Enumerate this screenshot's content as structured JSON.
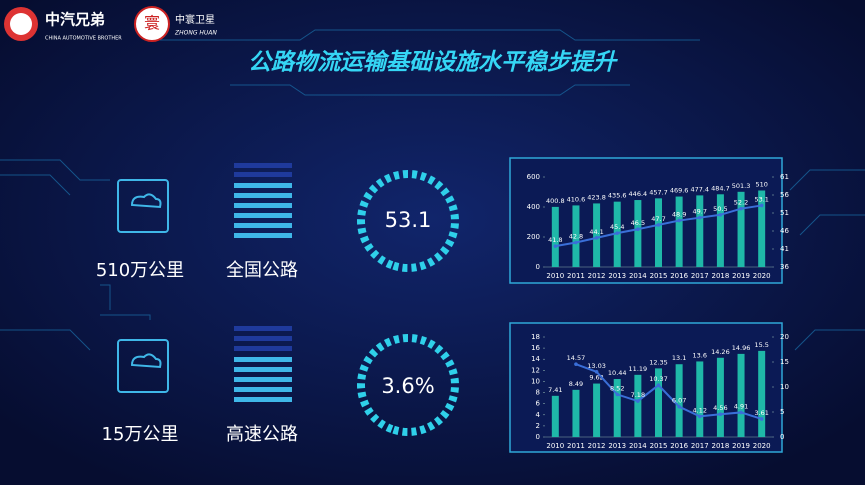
{
  "header": {
    "logo1": "中汽兄弟",
    "logo1_sub": "CHINA AUTOMOTIVE BROTHER",
    "logo2": "中寰卫星",
    "logo2_sub": "ZHONG HUAN",
    "title": "公路物流运输基础设施水平稳步提升"
  },
  "rows": [
    {
      "length": "510万公里",
      "label": "全国公路",
      "gauge": "53.1"
    },
    {
      "length": "15万公里",
      "label": "高速公路",
      "gauge": "3.6%"
    }
  ],
  "chart_data": [
    {
      "type": "bar-line",
      "categories": [
        "2010",
        "2011",
        "2012",
        "2013",
        "2014",
        "2015",
        "2016",
        "2017",
        "2018",
        "2019",
        "2020"
      ],
      "series": [
        {
          "color": "#1fb8a8",
          "values": [
            400.8,
            410.6,
            423.8,
            435.6,
            446.4,
            457.7,
            469.6,
            477.4,
            484.7,
            501.3,
            510
          ]
        },
        {
          "color": "#3a6fd8",
          "axis": "y2",
          "values": [
            41.8,
            42.8,
            44.1,
            45.4,
            46.5,
            47.7,
            48.9,
            49.7,
            50.5,
            52.2,
            53.1
          ]
        }
      ],
      "ylim": [
        0,
        600
      ],
      "yticks": [
        0,
        200,
        400,
        600
      ],
      "y2lim": [
        36,
        61
      ],
      "y2ticks": [
        36,
        41,
        46,
        51,
        56,
        61
      ]
    },
    {
      "type": "bar-line",
      "categories": [
        "2010",
        "2011",
        "2012",
        "2013",
        "2014",
        "2015",
        "2016",
        "2017",
        "2018",
        "2019",
        "2020"
      ],
      "series": [
        {
          "color": "#1fb8a8",
          "values": [
            7.41,
            8.49,
            9.62,
            10.44,
            11.19,
            12.35,
            13.1,
            13.6,
            14.26,
            14.96,
            15.5
          ]
        },
        {
          "color": "#3a6fd8",
          "axis": "y2",
          "values": [
            null,
            14.57,
            13.03,
            8.52,
            7.18,
            10.37,
            6.07,
            4.12,
            4.56,
            4.91,
            3.61
          ]
        }
      ],
      "ylim": [
        0,
        18
      ],
      "yticks": [
        0,
        2,
        4,
        6,
        8,
        10,
        12,
        14,
        16,
        18
      ],
      "y2lim": [
        0,
        20
      ],
      "y2ticks": [
        0,
        5,
        10,
        15,
        20
      ]
    }
  ]
}
